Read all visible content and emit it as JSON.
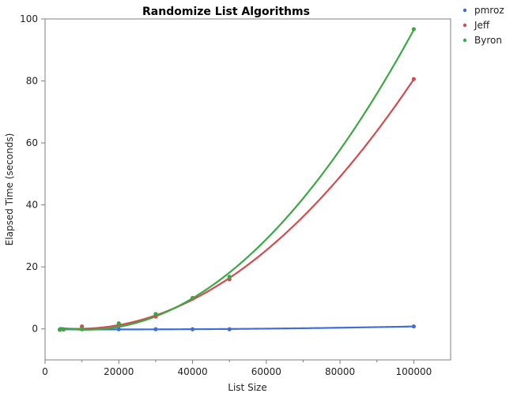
{
  "chart_data": {
    "type": "scatter",
    "title": "Randomize List Algorithms",
    "xlabel": "List Size",
    "ylabel": "Elapsed Time (seconds)",
    "xlim": [
      0,
      110000
    ],
    "ylim": [
      -10,
      100
    ],
    "xticks": [
      0,
      20000,
      40000,
      60000,
      80000,
      100000
    ],
    "yticks": [
      0,
      20,
      40,
      60,
      80,
      100
    ],
    "grid": false,
    "legend_position": "top-right",
    "fit_lines": true,
    "series": [
      {
        "name": "pmroz",
        "color": "#3f6fd6",
        "x": [
          4000,
          5000,
          10000,
          20000,
          30000,
          40000,
          50000,
          100000
        ],
        "y": [
          -0.2,
          -0.2,
          -0.1,
          -0.1,
          -0.1,
          -0.1,
          -0.1,
          0.8
        ]
      },
      {
        "name": "Jeff",
        "color": "#d24b4f",
        "x": [
          4000,
          5000,
          10000,
          20000,
          30000,
          40000,
          50000,
          100000
        ],
        "y": [
          -0.2,
          -0.1,
          0.8,
          1.6,
          4.0,
          9.8,
          16.0,
          80.6
        ]
      },
      {
        "name": "Byron",
        "color": "#3ba845",
        "x": [
          4000,
          5000,
          10000,
          20000,
          30000,
          40000,
          50000,
          100000
        ],
        "y": [
          -0.3,
          -0.2,
          0.0,
          1.8,
          4.8,
          10.0,
          16.8,
          96.7
        ]
      }
    ]
  }
}
